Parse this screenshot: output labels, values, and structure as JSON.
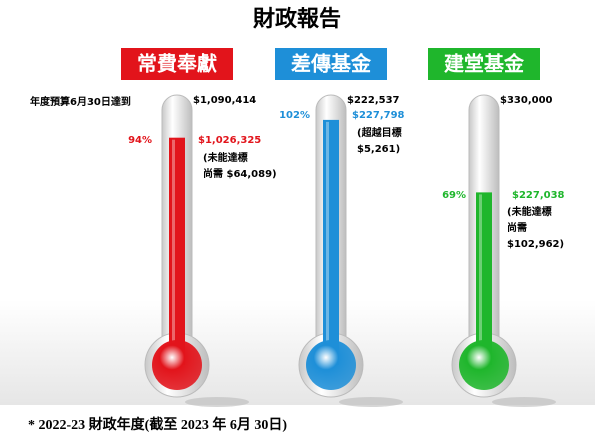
{
  "chart_data": {
    "type": "thermometer",
    "title": "財政報告",
    "annotation": "年度預算6月30日達到",
    "footnote": "* 2022-23 財政年度(截至 2023 年 6月 30日)",
    "series": [
      {
        "name": "常費奉獻",
        "color": "#e2141b",
        "target": 1090414,
        "target_label": "$1,090,414",
        "values": [
          1026325
        ],
        "value_labels": [
          "$1,026,325"
        ],
        "percent": 94,
        "percent_label": "94%",
        "note": [
          "(未能達標",
          "尚需 $64,089)"
        ]
      },
      {
        "name": "差傳基金",
        "color": "#1e8fd8",
        "target": 222537,
        "target_label": "$222,537",
        "values": [
          227798
        ],
        "value_labels": [
          "$227,798"
        ],
        "percent": 102,
        "percent_label": "102%",
        "note": [
          "(超越目標",
          "$5,261)"
        ]
      },
      {
        "name": "建堂基金",
        "color": "#1fb62c",
        "target": 330000,
        "target_label": "$330,000",
        "values": [
          227038
        ],
        "value_labels": [
          "$227,038"
        ],
        "percent": 69,
        "percent_label": "69%",
        "note": [
          "(未能達標",
          "尚需",
          "$102,962)"
        ]
      }
    ]
  }
}
